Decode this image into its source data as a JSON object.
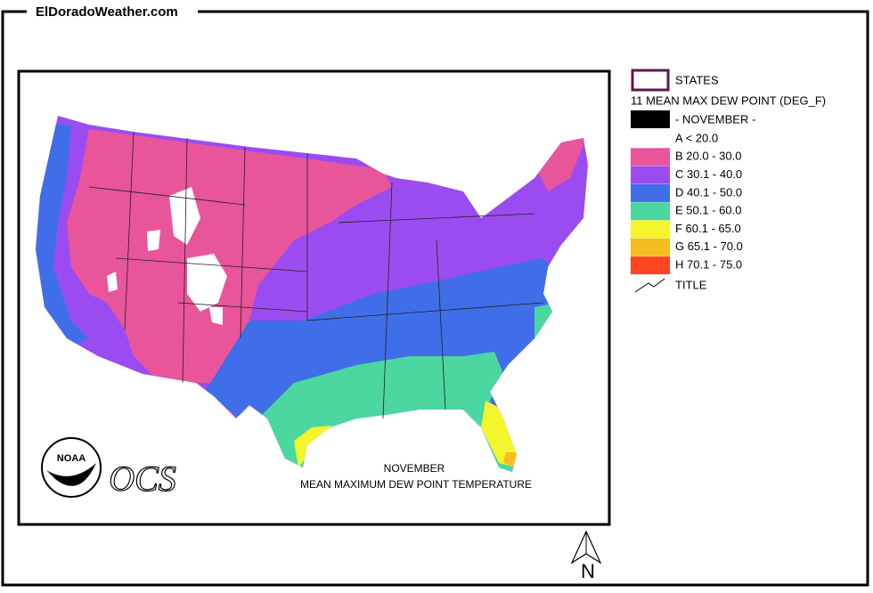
{
  "header": {
    "site": "ElDoradoWeather.com"
  },
  "map": {
    "title_lines": [
      "NOVEMBER",
      "MEAN MAXIMUM DEW POINT TEMPERATURE"
    ],
    "logo": "NOAA",
    "agency": "OCS",
    "north": "N"
  },
  "legend": {
    "states": "STATES",
    "layer": "11 MEAN MAX DEW POINT (DEG_F)",
    "month": "- NOVEMBER -",
    "month_color": "#000000",
    "classes": [
      {
        "label": "A < 20.0",
        "color": "#ffffff"
      },
      {
        "label": "B 20.0 - 30.0",
        "color": "#e8559b"
      },
      {
        "label": "C 30.1 - 40.0",
        "color": "#9b4cf0"
      },
      {
        "label": "D 40.1 - 50.0",
        "color": "#3f6ee8"
      },
      {
        "label": "E 50.1 - 60.0",
        "color": "#4cd6a0"
      },
      {
        "label": "F 60.1 - 65.0",
        "color": "#f5f52e"
      },
      {
        "label": "G 65.1 - 70.0",
        "color": "#f5be20"
      },
      {
        "label": "H 70.1 - 75.0",
        "color": "#ff4422"
      }
    ],
    "title_item": "TITLE"
  }
}
